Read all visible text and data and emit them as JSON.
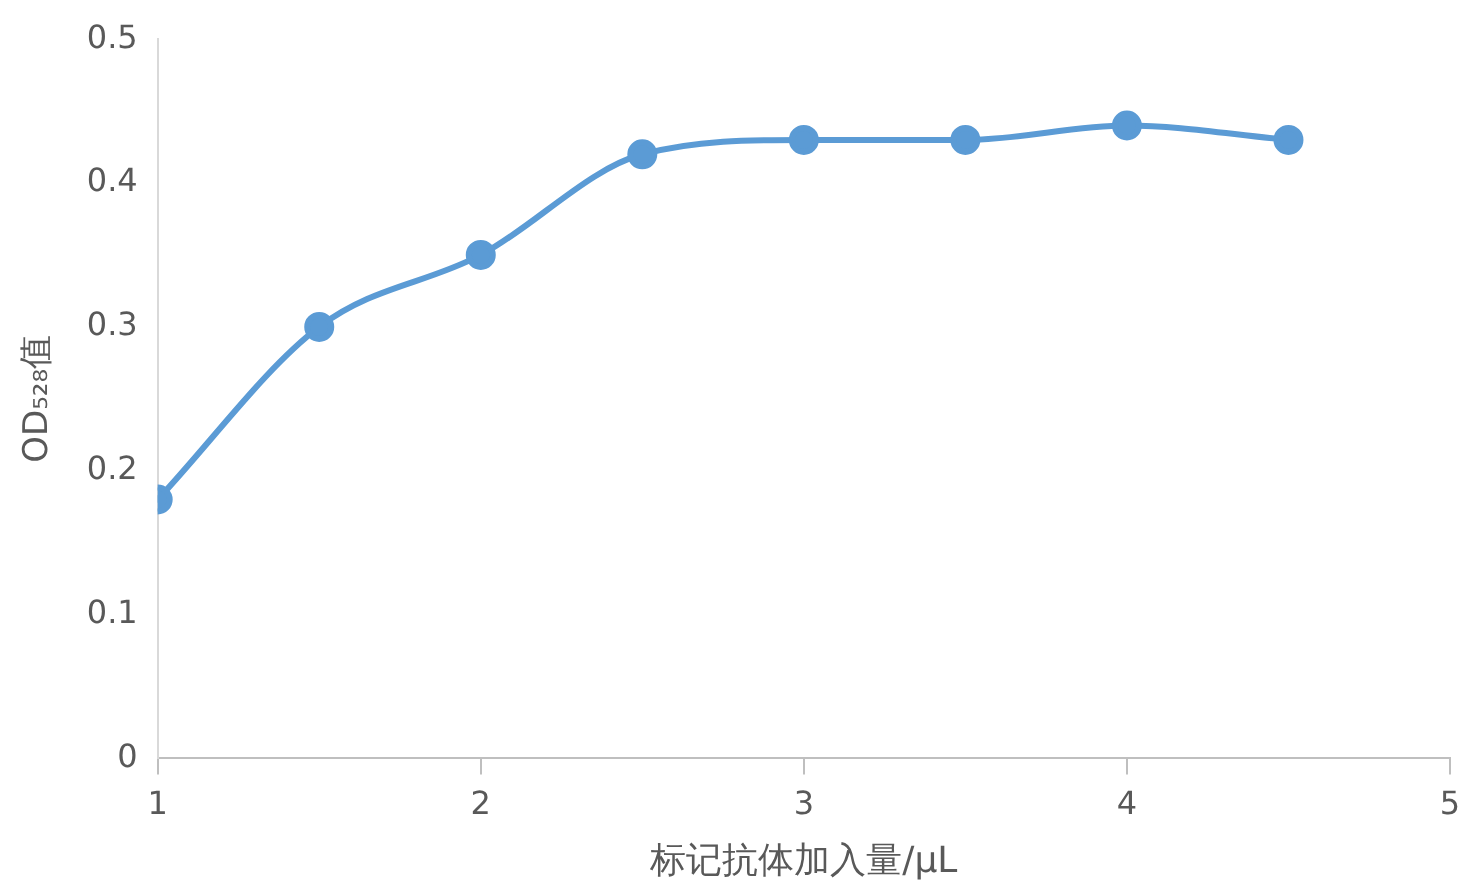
{
  "chart_data": {
    "type": "line",
    "xlabel": "标记抗体加入量/μL",
    "ylabel": "OD₅₂₈值",
    "x": [
      1,
      1.5,
      2,
      2.5,
      3,
      3.5,
      4,
      4.5
    ],
    "series": [
      {
        "color": "#5b9bd5",
        "values": [
          0.18,
          0.3,
          0.35,
          0.42,
          0.43,
          0.43,
          0.44,
          0.43
        ]
      }
    ],
    "xlim": [
      1,
      5
    ],
    "xticks": [
      1,
      2,
      3,
      4,
      5
    ],
    "ylim": [
      0,
      0.5
    ],
    "yticks": [
      0,
      0.1,
      0.2,
      0.3,
      0.4,
      0.5
    ],
    "grid": false,
    "legend": false,
    "marker": "circle",
    "line_style": "solid"
  }
}
